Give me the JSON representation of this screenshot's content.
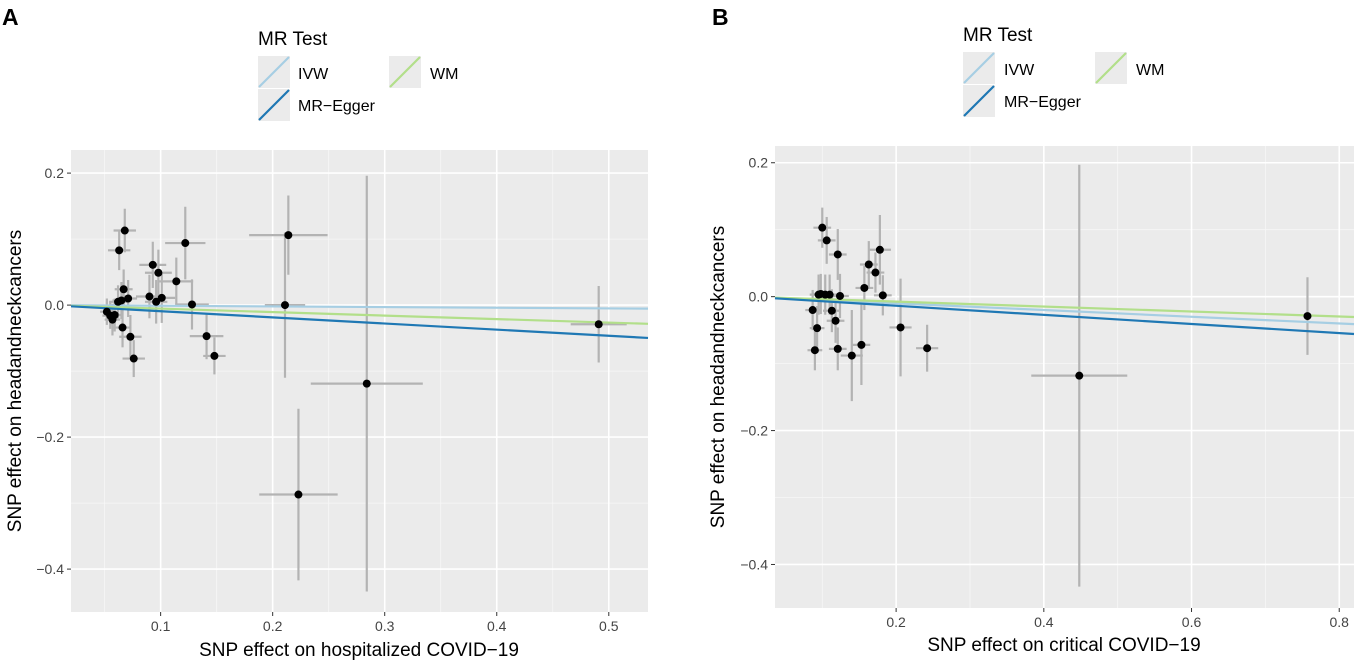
{
  "legend": {
    "title": "MR Test",
    "entries": [
      {
        "key": "ivw",
        "label": "IVW",
        "color": "#a6cee3"
      },
      {
        "key": "egger",
        "label": "MR−Egger",
        "color": "#1f78b4"
      },
      {
        "key": "wm",
        "label": "WM",
        "color": "#b2df8a"
      }
    ]
  },
  "chart_data": [
    {
      "panel": "A",
      "type": "scatter",
      "xlabel": "SNP effect on hospitalized COVID−19",
      "ylabel": "SNP effect on headandneckcancers",
      "xlim": [
        0.02,
        0.535
      ],
      "ylim": [
        -0.465,
        0.235
      ],
      "xticks": [
        0.1,
        0.2,
        0.3,
        0.4,
        0.5
      ],
      "xtick_labels": [
        "0.1",
        "0.2",
        "0.3",
        "0.4",
        "0.5"
      ],
      "yticks": [
        0.2,
        0.0,
        -0.2,
        -0.4
      ],
      "ytick_labels": [
        "0.2",
        "0.0",
        "−0.2",
        "−0.4"
      ],
      "lines": [
        {
          "method": "ivw",
          "slope": -0.01
        },
        {
          "method": "wm",
          "slope": -0.053
        },
        {
          "method": "egger",
          "slope": -0.093
        }
      ],
      "points": [
        {
          "x": 0.052,
          "y": -0.01,
          "xse": 0.006,
          "yse": 0.02
        },
        {
          "x": 0.055,
          "y": -0.016,
          "xse": 0.007,
          "yse": 0.02
        },
        {
          "x": 0.057,
          "y": -0.022,
          "xse": 0.007,
          "yse": 0.024
        },
        {
          "x": 0.059,
          "y": -0.015,
          "xse": 0.007,
          "yse": 0.025
        },
        {
          "x": 0.062,
          "y": 0.005,
          "xse": 0.008,
          "yse": 0.025
        },
        {
          "x": 0.063,
          "y": 0.083,
          "xse": 0.01,
          "yse": 0.03
        },
        {
          "x": 0.065,
          "y": 0.007,
          "xse": 0.008,
          "yse": 0.028
        },
        {
          "x": 0.066,
          "y": -0.034,
          "xse": 0.008,
          "yse": 0.03
        },
        {
          "x": 0.067,
          "y": 0.024,
          "xse": 0.008,
          "yse": 0.03
        },
        {
          "x": 0.068,
          "y": 0.113,
          "xse": 0.01,
          "yse": 0.033
        },
        {
          "x": 0.071,
          "y": 0.01,
          "xse": 0.008,
          "yse": 0.028
        },
        {
          "x": 0.073,
          "y": -0.048,
          "xse": 0.01,
          "yse": 0.033
        },
        {
          "x": 0.076,
          "y": -0.081,
          "xse": 0.01,
          "yse": 0.028
        },
        {
          "x": 0.09,
          "y": 0.013,
          "xse": 0.012,
          "yse": 0.033
        },
        {
          "x": 0.093,
          "y": 0.061,
          "xse": 0.012,
          "yse": 0.035
        },
        {
          "x": 0.096,
          "y": 0.005,
          "xse": 0.01,
          "yse": 0.033
        },
        {
          "x": 0.098,
          "y": 0.049,
          "xse": 0.012,
          "yse": 0.035
        },
        {
          "x": 0.101,
          "y": 0.011,
          "xse": 0.012,
          "yse": 0.038
        },
        {
          "x": 0.114,
          "y": 0.036,
          "xse": 0.015,
          "yse": 0.036
        },
        {
          "x": 0.122,
          "y": 0.094,
          "xse": 0.018,
          "yse": 0.055
        },
        {
          "x": 0.128,
          "y": 0.001,
          "xse": 0.015,
          "yse": 0.038
        },
        {
          "x": 0.141,
          "y": -0.047,
          "xse": 0.015,
          "yse": 0.035
        },
        {
          "x": 0.148,
          "y": -0.077,
          "xse": 0.01,
          "yse": 0.028
        },
        {
          "x": 0.211,
          "y": 0.0,
          "xse": 0.018,
          "yse": 0.11
        },
        {
          "x": 0.214,
          "y": 0.106,
          "xse": 0.035,
          "yse": 0.06
        },
        {
          "x": 0.223,
          "y": -0.287,
          "xse": 0.035,
          "yse": 0.13
        },
        {
          "x": 0.284,
          "y": -0.119,
          "xse": 0.05,
          "yse": 0.315
        },
        {
          "x": 0.491,
          "y": -0.029,
          "xse": 0.025,
          "yse": 0.058
        }
      ]
    },
    {
      "panel": "B",
      "type": "scatter",
      "xlabel": "SNP effect on critical COVID−19",
      "ylabel": "SNP effect on headandneckcancers",
      "xlim": [
        0.036,
        0.82
      ],
      "ylim": [
        -0.465,
        0.225
      ],
      "xticks": [
        0.2,
        0.4,
        0.6,
        0.8
      ],
      "xtick_labels": [
        "0.2",
        "0.4",
        "0.6",
        "0.8"
      ],
      "yticks": [
        0.2,
        0.0,
        -0.2,
        -0.4
      ],
      "ytick_labels": [
        "0.2",
        "0.0",
        "−0.2",
        "−0.4"
      ],
      "lines": [
        {
          "method": "ivw",
          "slope": -0.05
        },
        {
          "method": "wm",
          "slope": -0.037
        },
        {
          "method": "egger",
          "slope": -0.068
        }
      ],
      "points": [
        {
          "x": 0.087,
          "y": -0.02,
          "xse": 0.01,
          "yse": 0.03
        },
        {
          "x": 0.09,
          "y": -0.08,
          "xse": 0.01,
          "yse": 0.03
        },
        {
          "x": 0.093,
          "y": -0.047,
          "xse": 0.01,
          "yse": 0.033
        },
        {
          "x": 0.095,
          "y": 0.003,
          "xse": 0.012,
          "yse": 0.03
        },
        {
          "x": 0.098,
          "y": 0.004,
          "xse": 0.012,
          "yse": 0.03
        },
        {
          "x": 0.1,
          "y": 0.103,
          "xse": 0.012,
          "yse": 0.03
        },
        {
          "x": 0.104,
          "y": 0.003,
          "xse": 0.012,
          "yse": 0.03
        },
        {
          "x": 0.106,
          "y": 0.084,
          "xse": 0.012,
          "yse": 0.035
        },
        {
          "x": 0.11,
          "y": 0.003,
          "xse": 0.012,
          "yse": 0.03
        },
        {
          "x": 0.113,
          "y": -0.021,
          "xse": 0.012,
          "yse": 0.032
        },
        {
          "x": 0.118,
          "y": -0.036,
          "xse": 0.012,
          "yse": 0.033
        },
        {
          "x": 0.121,
          "y": 0.063,
          "xse": 0.012,
          "yse": 0.038
        },
        {
          "x": 0.121,
          "y": -0.078,
          "xse": 0.012,
          "yse": 0.032
        },
        {
          "x": 0.124,
          "y": 0.001,
          "xse": 0.012,
          "yse": 0.033
        },
        {
          "x": 0.14,
          "y": -0.088,
          "xse": 0.015,
          "yse": 0.068
        },
        {
          "x": 0.153,
          "y": -0.072,
          "xse": 0.012,
          "yse": 0.06
        },
        {
          "x": 0.157,
          "y": 0.013,
          "xse": 0.012,
          "yse": 0.033
        },
        {
          "x": 0.163,
          "y": 0.048,
          "xse": 0.012,
          "yse": 0.035
        },
        {
          "x": 0.172,
          "y": 0.036,
          "xse": 0.012,
          "yse": 0.03
        },
        {
          "x": 0.178,
          "y": 0.07,
          "xse": 0.015,
          "yse": 0.052
        },
        {
          "x": 0.182,
          "y": 0.002,
          "xse": 0.012,
          "yse": 0.03
        },
        {
          "x": 0.206,
          "y": -0.046,
          "xse": 0.015,
          "yse": 0.073
        },
        {
          "x": 0.242,
          "y": -0.077,
          "xse": 0.015,
          "yse": 0.035
        },
        {
          "x": 0.448,
          "y": -0.118,
          "xse": 0.065,
          "yse": 0.315
        },
        {
          "x": 0.757,
          "y": -0.029,
          "xse": 0.005,
          "yse": 0.058
        }
      ]
    }
  ]
}
